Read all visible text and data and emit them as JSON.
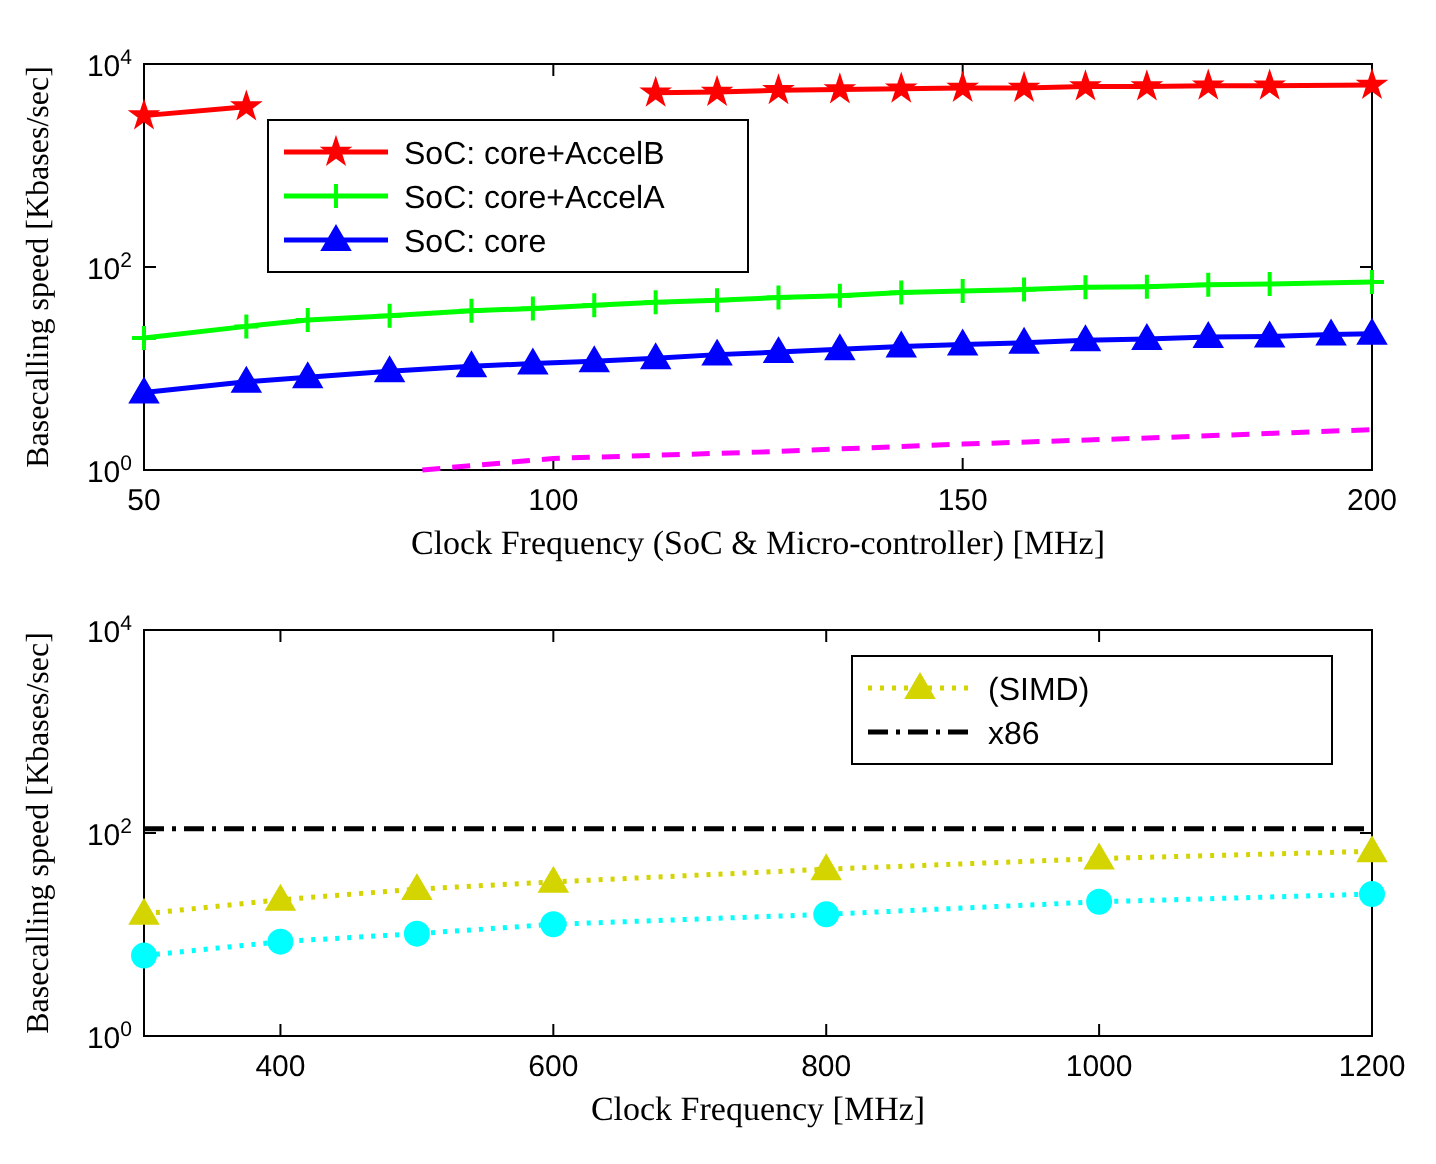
{
  "chart_data": [
    {
      "type": "line",
      "xlabel": "Clock Frequency (SoC & Micro-controller) [MHz]",
      "ylabel": "Basecalling speed [Kbases/sec]",
      "log": "y",
      "legend": "top left",
      "xlim": [
        50,
        200
      ],
      "xticks": [
        50,
        100,
        150,
        200
      ],
      "ylim": [
        1,
        10000
      ],
      "yticks": [
        {
          "value": 1,
          "label": "10$^{0}$"
        },
        {
          "value": 100,
          "label": "10$^{2}$"
        },
        {
          "value": 10000,
          "label": "10$^{4}$"
        }
      ],
      "series": [
        {
          "name": "SoC: core+AccelB",
          "color": "#ff0000",
          "marker": "star",
          "line_style": "solid",
          "x": [
            50,
            62.5,
            70,
            80,
            90,
            97.5,
            105,
            112.5,
            120,
            127.5,
            135,
            142.5,
            150,
            157.5,
            165,
            172.5,
            180,
            187.5,
            200
          ],
          "values": [
            3100,
            3800,
            null,
            null,
            null,
            null,
            null,
            5200,
            5300,
            5500,
            5600,
            5700,
            5800,
            5800,
            6000,
            6000,
            6100,
            6100,
            6200
          ]
        },
        {
          "name": "SoC: core+AccelA",
          "color": "#00ff00",
          "marker": "cross",
          "line_style": "solid",
          "x": [
            50,
            62.5,
            70,
            80,
            90,
            97.5,
            105,
            112.5,
            120,
            127.5,
            135,
            142.5,
            150,
            157.5,
            165,
            172.5,
            180,
            187.5,
            200
          ],
          "values": [
            20,
            26,
            30,
            33,
            37,
            39,
            42,
            45,
            47,
            50,
            52,
            56,
            58,
            60,
            63,
            64,
            67,
            68,
            71
          ]
        },
        {
          "name": "SoC: core",
          "color": "#0000ff",
          "marker": "triangle",
          "line_style": "solid",
          "x": [
            50,
            62.5,
            70,
            80,
            90,
            97.5,
            105,
            112.5,
            120,
            127.5,
            135,
            142.5,
            150,
            157.5,
            165,
            172.5,
            180,
            187.5,
            195,
            200
          ],
          "values": [
            5.8,
            7.4,
            8.2,
            9.4,
            10.5,
            11.2,
            11.8,
            12.6,
            13.7,
            14.5,
            15.5,
            16.5,
            17.2,
            17.9,
            19,
            19.5,
            20.4,
            20.7,
            21.6,
            22
          ]
        },
        {
          "color": "#ff00ff",
          "marker": "none",
          "line_style": "dashed",
          "x": [
            84,
            100,
            125,
            150,
            175,
            200
          ],
          "values": [
            1.0,
            1.3,
            1.5,
            1.8,
            2.1,
            2.5
          ]
        }
      ]
    },
    {
      "type": "line",
      "xlabel": "Clock Frequency [MHz]",
      "ylabel": "Basecalling speed [Kbases/sec]",
      "log": "y",
      "legend": "top right",
      "xlim": [
        300,
        1200
      ],
      "xticks": [
        400,
        600,
        800,
        1000,
        1200
      ],
      "ylim": [
        1,
        10000
      ],
      "yticks": [
        {
          "value": 1,
          "label": "10$^{0}$"
        },
        {
          "value": 100,
          "label": "10$^{2}$"
        },
        {
          "value": 10000,
          "label": "10$^{4}$"
        }
      ],
      "series": [
        {
          "color": "#00ffff",
          "marker": "circle",
          "line_style": "dotted",
          "x": [
            300,
            400,
            500,
            600,
            800,
            1000,
            1200
          ],
          "values": [
            6.2,
            8.5,
            10.2,
            12.6,
            15.8,
            21,
            25
          ]
        },
        {
          "name": "(SIMD)",
          "color": "#d4d400",
          "marker": "triangle",
          "line_style": "dotted",
          "x": [
            300,
            400,
            500,
            600,
            800,
            1000,
            1200
          ],
          "values": [
            16,
            22,
            28,
            33,
            44,
            56,
            66
          ]
        },
        {
          "name": "x86",
          "color": "#000000",
          "marker": "none",
          "line_style": "dashdot",
          "x": [
            300,
            1200
          ],
          "values": [
            110,
            110
          ]
        }
      ]
    }
  ]
}
